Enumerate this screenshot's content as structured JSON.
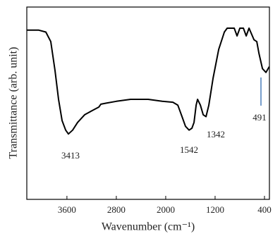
{
  "chart_data": {
    "type": "line",
    "xlabel": "Wavenumber (cm⁻¹)",
    "ylabel": "Transmittance (arb. unit)",
    "xlim": [
      4250,
      320
    ],
    "xticks": [
      3600,
      2800,
      2000,
      1200,
      400
    ],
    "ylim": [
      0,
      100
    ],
    "color": "#000000",
    "x": [
      4250,
      4056,
      3941,
      3861,
      3793,
      3736,
      3679,
      3621,
      3576,
      3507,
      3427,
      3313,
      3199,
      3084,
      3050,
      2970,
      2799,
      2570,
      2284,
      2056,
      1884,
      1804,
      1736,
      1679,
      1621,
      1576,
      1541,
      1507,
      1484,
      1439,
      1393,
      1347,
      1301,
      1233,
      1141,
      1050,
      1004,
      890,
      844,
      799,
      741,
      696,
      650,
      570,
      524,
      490,
      433,
      376,
      322
    ],
    "values": [
      88,
      88,
      87,
      82,
      67,
      52,
      41,
      36,
      34,
      36,
      40,
      44,
      46,
      48,
      49.5,
      50,
      51,
      52,
      52,
      51,
      50.5,
      49,
      43,
      38,
      36,
      37,
      40,
      49,
      52,
      49,
      44,
      43,
      49,
      63,
      78,
      87,
      89,
      89,
      85,
      89,
      89,
      85,
      89,
      83,
      82,
      76,
      68,
      66,
      69
    ],
    "annotations": [
      "3413",
      "1542",
      "1342",
      "491"
    ]
  }
}
